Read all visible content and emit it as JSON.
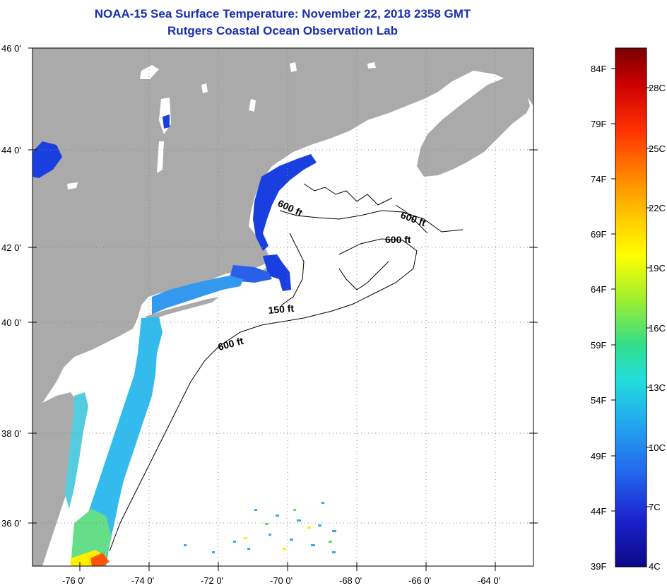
{
  "title": {
    "line1": "NOAA-15 Sea Surface Temperature:  November 22, 2018 2358 GMT",
    "line2": "Rutgers Coastal Ocean Observation Lab"
  },
  "map": {
    "longitude_labels": [
      "-76 0'",
      "-74 0'",
      "-72 0'",
      "-70 0'",
      "-68 0'",
      "-66 0'",
      "-64 0'"
    ],
    "latitude_labels": [
      "46 0'",
      "44 0'",
      "42 0'",
      "40 0'",
      "38 0'",
      "36 0'"
    ],
    "contour_labels": [
      "600 ft",
      "600 ft",
      "600 ft",
      "150 ft",
      "600 ft"
    ],
    "colors": {
      "land": "#aaaaaa",
      "water": "#ffffff",
      "grid": "#888888"
    }
  },
  "colorbar": {
    "fahrenheit_labels": [
      "84F",
      "79F",
      "74F",
      "69F",
      "64F",
      "59F",
      "54F",
      "49F",
      "44F",
      "39F"
    ],
    "celsius_labels": [
      "28C",
      "25C",
      "22C",
      "19C",
      "16C",
      "13C",
      "10C",
      "7C",
      "4C"
    ],
    "gradient_colors": [
      "#7a0000",
      "#cc0000",
      "#ff3300",
      "#ff8800",
      "#ffcc00",
      "#ffff00",
      "#99ee33",
      "#33dd88",
      "#22dddd",
      "#22aaee",
      "#2266ee",
      "#1a22cc",
      "#0a0a88"
    ]
  }
}
